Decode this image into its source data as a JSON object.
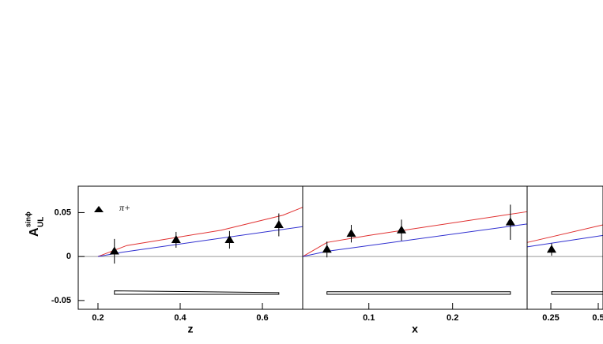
{
  "chart_data": [
    {
      "type": "scatter",
      "xlabel": "z",
      "ylabel": "A",
      "ylabel_sub": "UL",
      "ylabel_sup": "sinϕ",
      "xlim": [
        0.152,
        0.698
      ],
      "xticks": [
        0.2,
        0.4,
        0.6
      ],
      "ylim": [
        -0.06,
        0.08
      ],
      "yticks": [
        0.05,
        0,
        -0.05
      ],
      "hline": 0,
      "legend": "upper left",
      "series": [
        {
          "name": "π+",
          "color": "#000000",
          "x": [
            0.24,
            0.39,
            0.52,
            0.64
          ],
          "values": [
            0.006,
            0.019,
            0.019,
            0.036
          ],
          "errors": [
            0.014,
            0.009,
            0.01,
            0.013
          ]
        }
      ],
      "curves": [
        {
          "color": "#e03030",
          "x": [
            0.2,
            0.27,
            0.5,
            0.65,
            0.698
          ],
          "values": [
            0,
            0.0125,
            0.03,
            0.047,
            0.056
          ]
        },
        {
          "color": "#3030d0",
          "x": [
            0.2,
            0.26,
            0.698
          ],
          "values": [
            0,
            0.005,
            0.034
          ]
        }
      ],
      "band": {
        "x": [
          0.24,
          0.64
        ],
        "upper": [
          -0.039,
          -0.041
        ],
        "lower": [
          -0.043,
          -0.043
        ]
      }
    },
    {
      "type": "scatter",
      "xlabel": "x",
      "xlim": [
        0.021,
        0.289
      ],
      "xticks": [
        0.1,
        0.2
      ],
      "ylim": [
        -0.06,
        0.08
      ],
      "hline": 0,
      "series": [
        {
          "color": "#000000",
          "x": [
            0.05,
            0.079,
            0.139,
            0.269
          ],
          "values": [
            0.008,
            0.026,
            0.03,
            0.039
          ],
          "errors": [
            0.009,
            0.01,
            0.012,
            0.02
          ]
        }
      ],
      "curves": [
        {
          "color": "#e03030",
          "x": [
            0.021,
            0.05,
            0.1,
            0.289
          ],
          "values": [
            0,
            0.016,
            0.024,
            0.051
          ]
        },
        {
          "color": "#3030d0",
          "x": [
            0.021,
            0.05,
            0.289
          ],
          "values": [
            0,
            0.006,
            0.037
          ]
        }
      ],
      "band": {
        "x": [
          0.05,
          0.269
        ],
        "upper": [
          -0.04,
          -0.04
        ],
        "lower": [
          -0.043,
          -0.043
        ]
      }
    },
    {
      "type": "scatter",
      "xlim": [
        0.125,
        0.525
      ],
      "xticks": [
        0.25,
        0.5
      ],
      "ylim": [
        -0.06,
        0.08
      ],
      "hline": 0,
      "series": [
        {
          "color": "#000000",
          "x": [
            0.254
          ],
          "values": [
            0.008
          ],
          "errors": [
            0.007
          ]
        }
      ],
      "curves": [
        {
          "color": "#e03030",
          "x": [
            0.125,
            0.525
          ],
          "values": [
            0.016,
            0.036
          ]
        },
        {
          "color": "#3030d0",
          "x": [
            0.125,
            0.525
          ],
          "values": [
            0.011,
            0.024
          ]
        }
      ],
      "band": {
        "x": [
          0.254,
          0.525
        ],
        "upper": [
          -0.04,
          -0.04
        ],
        "lower": [
          -0.043,
          -0.043
        ]
      }
    }
  ]
}
